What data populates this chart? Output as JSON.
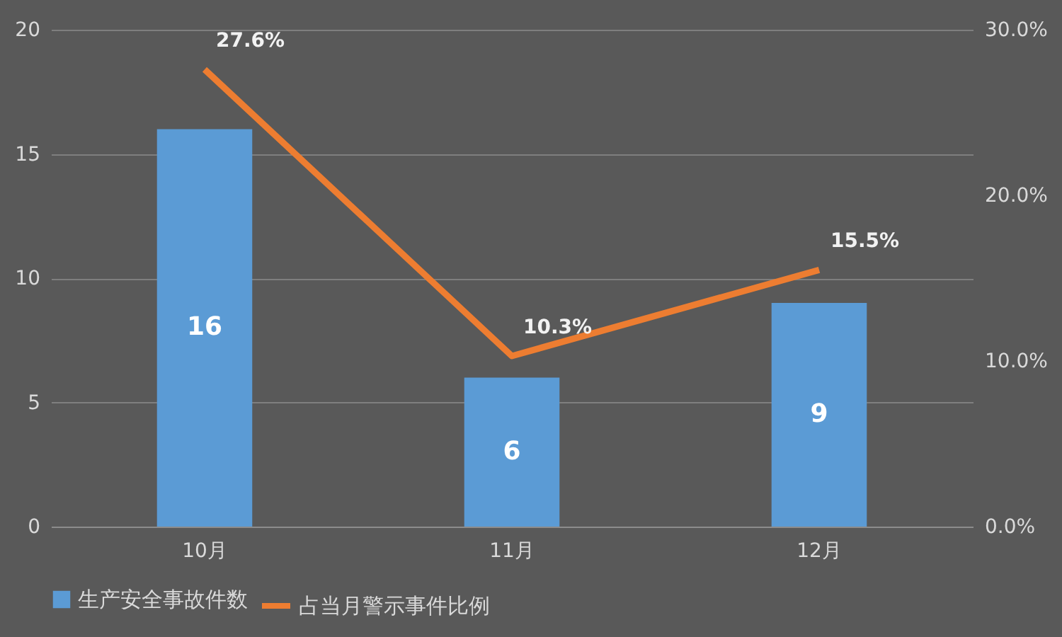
{
  "chart_data": {
    "type": "bar",
    "categories": [
      "10月",
      "11月",
      "12月"
    ],
    "series": [
      {
        "name": "生产安全事故件数",
        "color": "#5b9bd5",
        "values": [
          16,
          6,
          9
        ],
        "value_labels": [
          "16",
          "6",
          "9"
        ]
      },
      {
        "name": "占当月警示事件比例",
        "type": "line",
        "axis": "y2",
        "color": "#ed7d31",
        "values": [
          27.6,
          10.3,
          15.5
        ],
        "value_labels": [
          "27.6%",
          "10.3%",
          "15.5%"
        ]
      }
    ],
    "ylim": [
      0,
      20
    ],
    "yticks": [
      0,
      5,
      10,
      15,
      20
    ],
    "y2lim": [
      0,
      30
    ],
    "y2ticks": [
      {
        "value": 0,
        "label": "0.0%"
      },
      {
        "value": 10,
        "label": "10.0%"
      },
      {
        "value": 20,
        "label": "20.0%"
      },
      {
        "value": 30,
        "label": "30.0%"
      }
    ],
    "grid": "y",
    "legend": "bottom",
    "marker": "none",
    "line_style": "solid"
  }
}
